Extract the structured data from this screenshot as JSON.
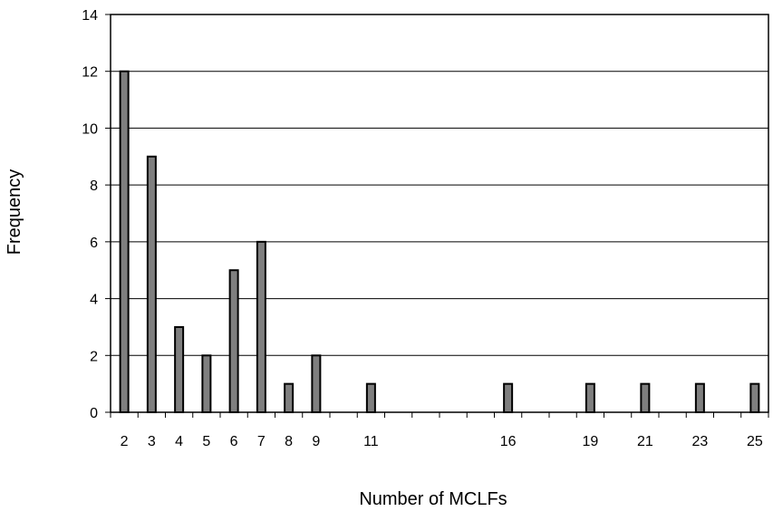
{
  "chart_data": {
    "type": "bar",
    "xlabel": "Number of MCLFs",
    "ylabel": "Frequency",
    "ylim": [
      0,
      14
    ],
    "yticks": [
      0,
      2,
      4,
      6,
      8,
      10,
      12,
      14
    ],
    "grid": true,
    "legend": "none",
    "colors": {
      "bar_fill": "#7f7f7f",
      "bar_stroke": "#000000",
      "grid": "#000000",
      "axis": "#000000"
    },
    "category_slots": 24,
    "bars": [
      {
        "label": "2",
        "slot": 0,
        "value": 12
      },
      {
        "label": "3",
        "slot": 1,
        "value": 9
      },
      {
        "label": "4",
        "slot": 2,
        "value": 3
      },
      {
        "label": "5",
        "slot": 3,
        "value": 2
      },
      {
        "label": "6",
        "slot": 4,
        "value": 5
      },
      {
        "label": "7",
        "slot": 5,
        "value": 6
      },
      {
        "label": "8",
        "slot": 6,
        "value": 1
      },
      {
        "label": "9",
        "slot": 7,
        "value": 2
      },
      {
        "label": "11",
        "slot": 9,
        "value": 1
      },
      {
        "label": "16",
        "slot": 14,
        "value": 1
      },
      {
        "label": "19",
        "slot": 17,
        "value": 1
      },
      {
        "label": "21",
        "slot": 19,
        "value": 1
      },
      {
        "label": "23",
        "slot": 21,
        "value": 1
      },
      {
        "label": "25",
        "slot": 23,
        "value": 1
      }
    ]
  }
}
